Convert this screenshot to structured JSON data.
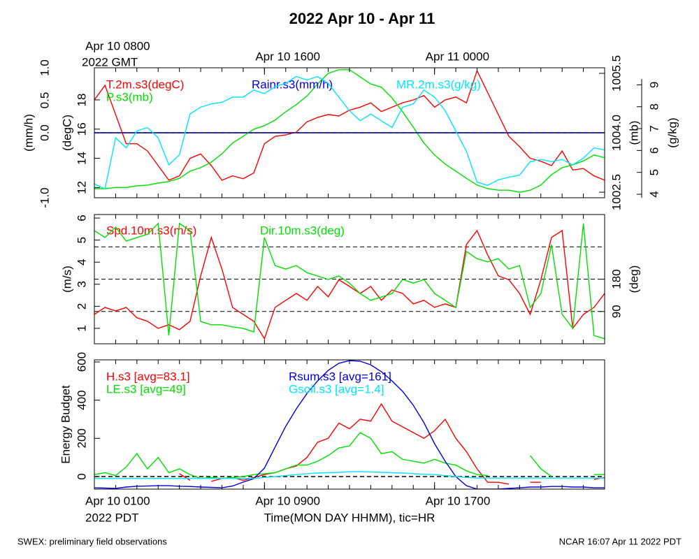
{
  "title": "2022 Apr 10 - Apr 11",
  "footer_left": "SWEX: preliminary field observations",
  "footer_right": "NCAR 16:07 Apr 11 2022 PDT",
  "chart_data": [
    {
      "type": "line",
      "x": [
        0,
        0.5,
        1,
        1.5,
        2,
        2.5,
        3,
        3.5,
        4,
        4.5,
        5,
        5.5,
        6,
        6.5,
        7,
        7.5,
        8,
        8.5,
        9,
        9.5,
        10,
        10.5,
        11,
        11.5,
        12,
        12.5,
        13,
        13.5,
        14,
        14.5,
        15,
        15.5,
        16,
        16.5,
        17,
        17.5,
        18,
        18.5,
        19,
        19.5,
        20,
        20.5,
        21,
        21.5,
        22,
        22.5,
        23,
        23.5,
        24
      ],
      "xlim": [
        0,
        24
      ],
      "xminorticks": [
        0,
        1,
        2,
        3,
        4,
        5,
        6,
        7,
        8,
        9,
        10,
        11,
        12,
        13,
        14,
        15,
        16,
        17,
        18,
        19,
        20,
        21,
        22,
        23,
        24
      ],
      "x2ticks": [
        {
          "value": 0,
          "label": "Apr 10 0800"
        },
        {
          "value": 8,
          "label": "Apr 10 1600"
        },
        {
          "value": 16,
          "label": "Apr 11 0000"
        }
      ],
      "x2year": "2022 GMT",
      "axes": {
        "y1": {
          "ylabel": "(mm/h)",
          "ylim": [
            -1,
            1
          ],
          "yticks": [
            {
              "value": -1,
              "label": "-1.0"
            },
            {
              "value": 0,
              "label": "0.0"
            },
            0.5,
            {
              "value": 1,
              "label": "1.0"
            }
          ],
          "zero_line": "solid"
        },
        "y2": {
          "ylabel": "(degC)",
          "ylim": [
            11.3,
            20.2
          ],
          "yticks": [
            12,
            14,
            16,
            18
          ]
        },
        "y3": {
          "ylabel": "(mb)",
          "ylim": [
            1002.36,
            1005.64
          ],
          "yticks": [
            1002.5,
            {
              "value": 1004,
              "label": "1004.0"
            },
            1005.5
          ]
        },
        "y4": {
          "ylabel": "(g/kg)",
          "ylim": [
            3.84,
            9.78
          ],
          "yticks": [
            4,
            5,
            6,
            7,
            8,
            9
          ]
        }
      },
      "series": [
        {
          "name": "T.2m.s3(degC)",
          "color": "#ff0000",
          "axis": "y2",
          "values": [
            18,
            19,
            17,
            15,
            15,
            14.5,
            13.5,
            12.5,
            12.8,
            14,
            14.3,
            13.5,
            12.5,
            12.8,
            12.6,
            13,
            15,
            15.5,
            15.6,
            15.8,
            16.5,
            16.8,
            17,
            16.9,
            17.3,
            17.5,
            17.8,
            17.2,
            17.5,
            17.8,
            18,
            18.3,
            17.5,
            18,
            18.2,
            17.8,
            20,
            18.5,
            17,
            15.5,
            14.8,
            14,
            13.8,
            13.5,
            14.5,
            13.2,
            13.3,
            12.8,
            12.5
          ]
        },
        {
          "name": "P.s3(mb)",
          "color": "#00e000",
          "axis": "y3",
          "values": [
            1002.59,
            1002.59,
            1002.62,
            1002.62,
            1002.66,
            1002.68,
            1002.73,
            1002.77,
            1002.85,
            1003.03,
            1003.12,
            1003.26,
            1003.47,
            1003.74,
            1003.91,
            1004.09,
            1004.18,
            1004.32,
            1004.53,
            1004.71,
            1004.93,
            1005.23,
            1005.5,
            1005.59,
            1005.59,
            1005.41,
            1005.23,
            1005.15,
            1004.88,
            1004.53,
            1004.14,
            1003.74,
            1003.44,
            1003.21,
            1003.03,
            1002.85,
            1002.68,
            1002.59,
            1002.55,
            1002.55,
            1002.5,
            1002.55,
            1002.68,
            1002.94,
            1003.12,
            1003.19,
            1003.29,
            1003.44,
            1003.37
          ]
        },
        {
          "name": "Rainr.s3(mm/h)",
          "color": "#0000ff",
          "axis": "y1",
          "line_style": "dashed",
          "values": [
            0,
            0,
            0,
            0,
            0,
            0,
            0,
            0,
            0,
            0,
            0,
            0,
            0,
            0,
            0,
            0,
            0,
            0,
            0,
            0,
            0,
            0,
            0,
            0,
            0,
            0,
            0,
            0,
            0,
            0,
            0,
            0,
            0,
            0,
            0,
            0,
            0,
            0,
            0,
            0,
            0,
            0,
            0,
            0,
            0,
            0,
            0,
            0,
            0
          ]
        },
        {
          "name": "MR.2m.s3(g/kg)",
          "color": "#00e5ff",
          "axis": "y4",
          "values": [
            4.47,
            4.25,
            6.58,
            6.12,
            6.89,
            7.05,
            6.58,
            5.34,
            5.81,
            7.67,
            7.98,
            8.13,
            8.2,
            8.44,
            8.44,
            8.76,
            8.6,
            8.91,
            9.07,
            9.38,
            9.22,
            9.38,
            9.07,
            8.44,
            7.82,
            7.36,
            7.67,
            7.36,
            7.05,
            7.98,
            8.13,
            8.76,
            8.44,
            7.82,
            6.89,
            5.96,
            4.56,
            4.41,
            4.66,
            4.78,
            4.87,
            5.49,
            5.59,
            5.49,
            5.59,
            5.34,
            5.65,
            6.12,
            6.02
          ]
        }
      ]
    },
    {
      "type": "line",
      "x": [
        0,
        0.5,
        1,
        1.5,
        2,
        2.5,
        3,
        3.5,
        4,
        4.5,
        5,
        5.5,
        6,
        6.5,
        7,
        7.5,
        8,
        8.5,
        9,
        9.5,
        10,
        10.5,
        11,
        11.5,
        12,
        12.5,
        13,
        13.5,
        14,
        14.5,
        15,
        15.5,
        16,
        16.5,
        17,
        17.5,
        18,
        18.5,
        19,
        19.5,
        20,
        20.5,
        21,
        21.5,
        22,
        22.5,
        23,
        23.5,
        24
      ],
      "xlim": [
        0,
        24
      ],
      "xminorticks": [
        0,
        1,
        2,
        3,
        4,
        5,
        6,
        7,
        8,
        9,
        10,
        11,
        12,
        13,
        14,
        15,
        16,
        17,
        18,
        19,
        20,
        21,
        22,
        23,
        24
      ],
      "axes": {
        "y1": {
          "ylabel": "(m/s)",
          "ylim": [
            0.3,
            6.16
          ],
          "yticks": [
            1,
            2,
            3,
            4,
            5,
            6
          ]
        },
        "y2": {
          "ylabel": "(deg)",
          "ylim": [
            0,
            360
          ],
          "yticks": [
            90,
            180
          ],
          "ygrid": [
            90,
            180,
            270
          ]
        }
      },
      "series": [
        {
          "name": "Spd.10m.s3(m/s)",
          "color": "#ff0000",
          "axis": "y1",
          "values": [
            1.63,
            1.95,
            1.79,
            1.95,
            1.48,
            1.32,
            1,
            1.16,
            0.94,
            1.32,
            3.38,
            5.12,
            3.69,
            1.95,
            1.63,
            1.32,
            0.53,
            1.95,
            2.27,
            2.58,
            2.27,
            2.9,
            2.43,
            3.2,
            2.9,
            2.58,
            2.9,
            2.27,
            2.74,
            2.58,
            2.11,
            2.27,
            1.95,
            2.11,
            1.95,
            4.8,
            5.43,
            4.33,
            3.38,
            3.2,
            2.58,
            1.63,
            3.2,
            5.12,
            5.43,
            1,
            1.63,
            1.95,
            2.58
          ]
        },
        {
          "name": "Dir.10m.s3(deg)",
          "color": "#00e000",
          "axis": "y2",
          "values": [
            315,
            296,
            325,
            286,
            296,
            305,
            335,
            23,
            335,
            315,
            62,
            53,
            53,
            47,
            43,
            33,
            296,
            218,
            208,
            218,
            198,
            189,
            179,
            189,
            169,
            140,
            121,
            130,
            140,
            179,
            169,
            179,
            140,
            121,
            101,
            257,
            237,
            228,
            237,
            208,
            218,
            101,
            140,
            276,
            82,
            43,
            335,
            23,
            14
          ]
        }
      ]
    },
    {
      "type": "line",
      "x": [
        0,
        0.5,
        1,
        1.5,
        2,
        2.5,
        3,
        3.5,
        4,
        4.5,
        5,
        5.5,
        6,
        6.5,
        7,
        7.5,
        8,
        8.5,
        9,
        9.5,
        10,
        10.5,
        11,
        11.5,
        12,
        12.5,
        13,
        13.5,
        14,
        14.5,
        15,
        15.5,
        16,
        16.5,
        17,
        17.5,
        18,
        18.5,
        19,
        19.5,
        20,
        20.5,
        21,
        21.5,
        22,
        22.5,
        23,
        23.5,
        24
      ],
      "xlim": [
        0,
        24
      ],
      "xminorticks": [
        0,
        1,
        2,
        3,
        4,
        5,
        6,
        7,
        8,
        9,
        10,
        11,
        12,
        13,
        14,
        15,
        16,
        17,
        18,
        19,
        20,
        21,
        22,
        23,
        24
      ],
      "xticks": [
        {
          "value": 0,
          "label": "Apr 10 0100"
        },
        {
          "value": 8,
          "label": "Apr 10 0900"
        },
        {
          "value": 16,
          "label": "Apr 10 1700"
        }
      ],
      "xyear": "2022 PDT",
      "xlabel": "Time(MON DAY HHMM), tic=HR",
      "axes": {
        "y1": {
          "ylabel": "Energy Budget",
          "ylim": [
            -66,
            611
          ],
          "yticks": [
            0,
            200,
            400,
            600
          ],
          "zero_line": "dashed"
        }
      },
      "series": [
        {
          "name": "H.s3 [avg=83.1]",
          "color": "#ff0000",
          "axis": "y1",
          "values": [
            null,
            null,
            null,
            null,
            null,
            null,
            null,
            null,
            15,
            -20,
            null,
            -25,
            -10,
            -5,
            -20,
            -5,
            10,
            20,
            40,
            55,
            100,
            180,
            200,
            280,
            250,
            300,
            290,
            380,
            290,
            260,
            230,
            200,
            240,
            300,
            200,
            130,
            40,
            -30,
            -30,
            -40,
            null,
            -30,
            -30,
            null,
            null,
            null,
            null,
            -15,
            -5
          ]
        },
        {
          "name": "LE.s3 [avg=49]",
          "color": "#00e000",
          "axis": "y1",
          "values": [
            10,
            20,
            5,
            50,
            120,
            40,
            100,
            20,
            40,
            10,
            -10,
            -5,
            -10,
            -5,
            0,
            10,
            15,
            20,
            40,
            60,
            60,
            80,
            110,
            150,
            160,
            230,
            200,
            120,
            130,
            90,
            80,
            70,
            90,
            70,
            60,
            30,
            10,
            5,
            null,
            10,
            null,
            110,
            40,
            0,
            null,
            30,
            null,
            10,
            10
          ]
        },
        {
          "name": "Rsum.s3 [avg=161]",
          "color": "#0000dd",
          "axis": "y1",
          "values": [
            -59,
            -60,
            -62,
            -55,
            -51,
            -50,
            -48,
            -48,
            -51,
            -52,
            -55,
            -57,
            -59,
            -50,
            -29,
            -11,
            44,
            154,
            263,
            355,
            435,
            501,
            556,
            593,
            607,
            604,
            585,
            549,
            501,
            446,
            373,
            282,
            172,
            80,
            0,
            -48,
            -66,
            -66,
            -66,
            -62,
            -59,
            -55,
            -55,
            -52,
            -52,
            -55,
            -55,
            -59,
            -59
          ]
        },
        {
          "name": "Gsoil.s3 [avg=1.4]",
          "color": "#00e5ff",
          "axis": "y1",
          "values": [
            -10,
            -10,
            -10,
            -10,
            -10,
            -10,
            -10,
            -10,
            -10,
            -10,
            -10,
            -10,
            -10,
            -10,
            -10,
            -10,
            -5,
            0,
            5,
            10,
            15,
            18,
            20,
            22,
            25,
            25,
            24,
            22,
            20,
            18,
            15,
            12,
            10,
            5,
            0,
            -5,
            -8,
            -8,
            -8,
            -8,
            -8,
            -8,
            -8,
            -8,
            -8,
            -8,
            -8,
            -8,
            -8
          ]
        }
      ]
    }
  ]
}
